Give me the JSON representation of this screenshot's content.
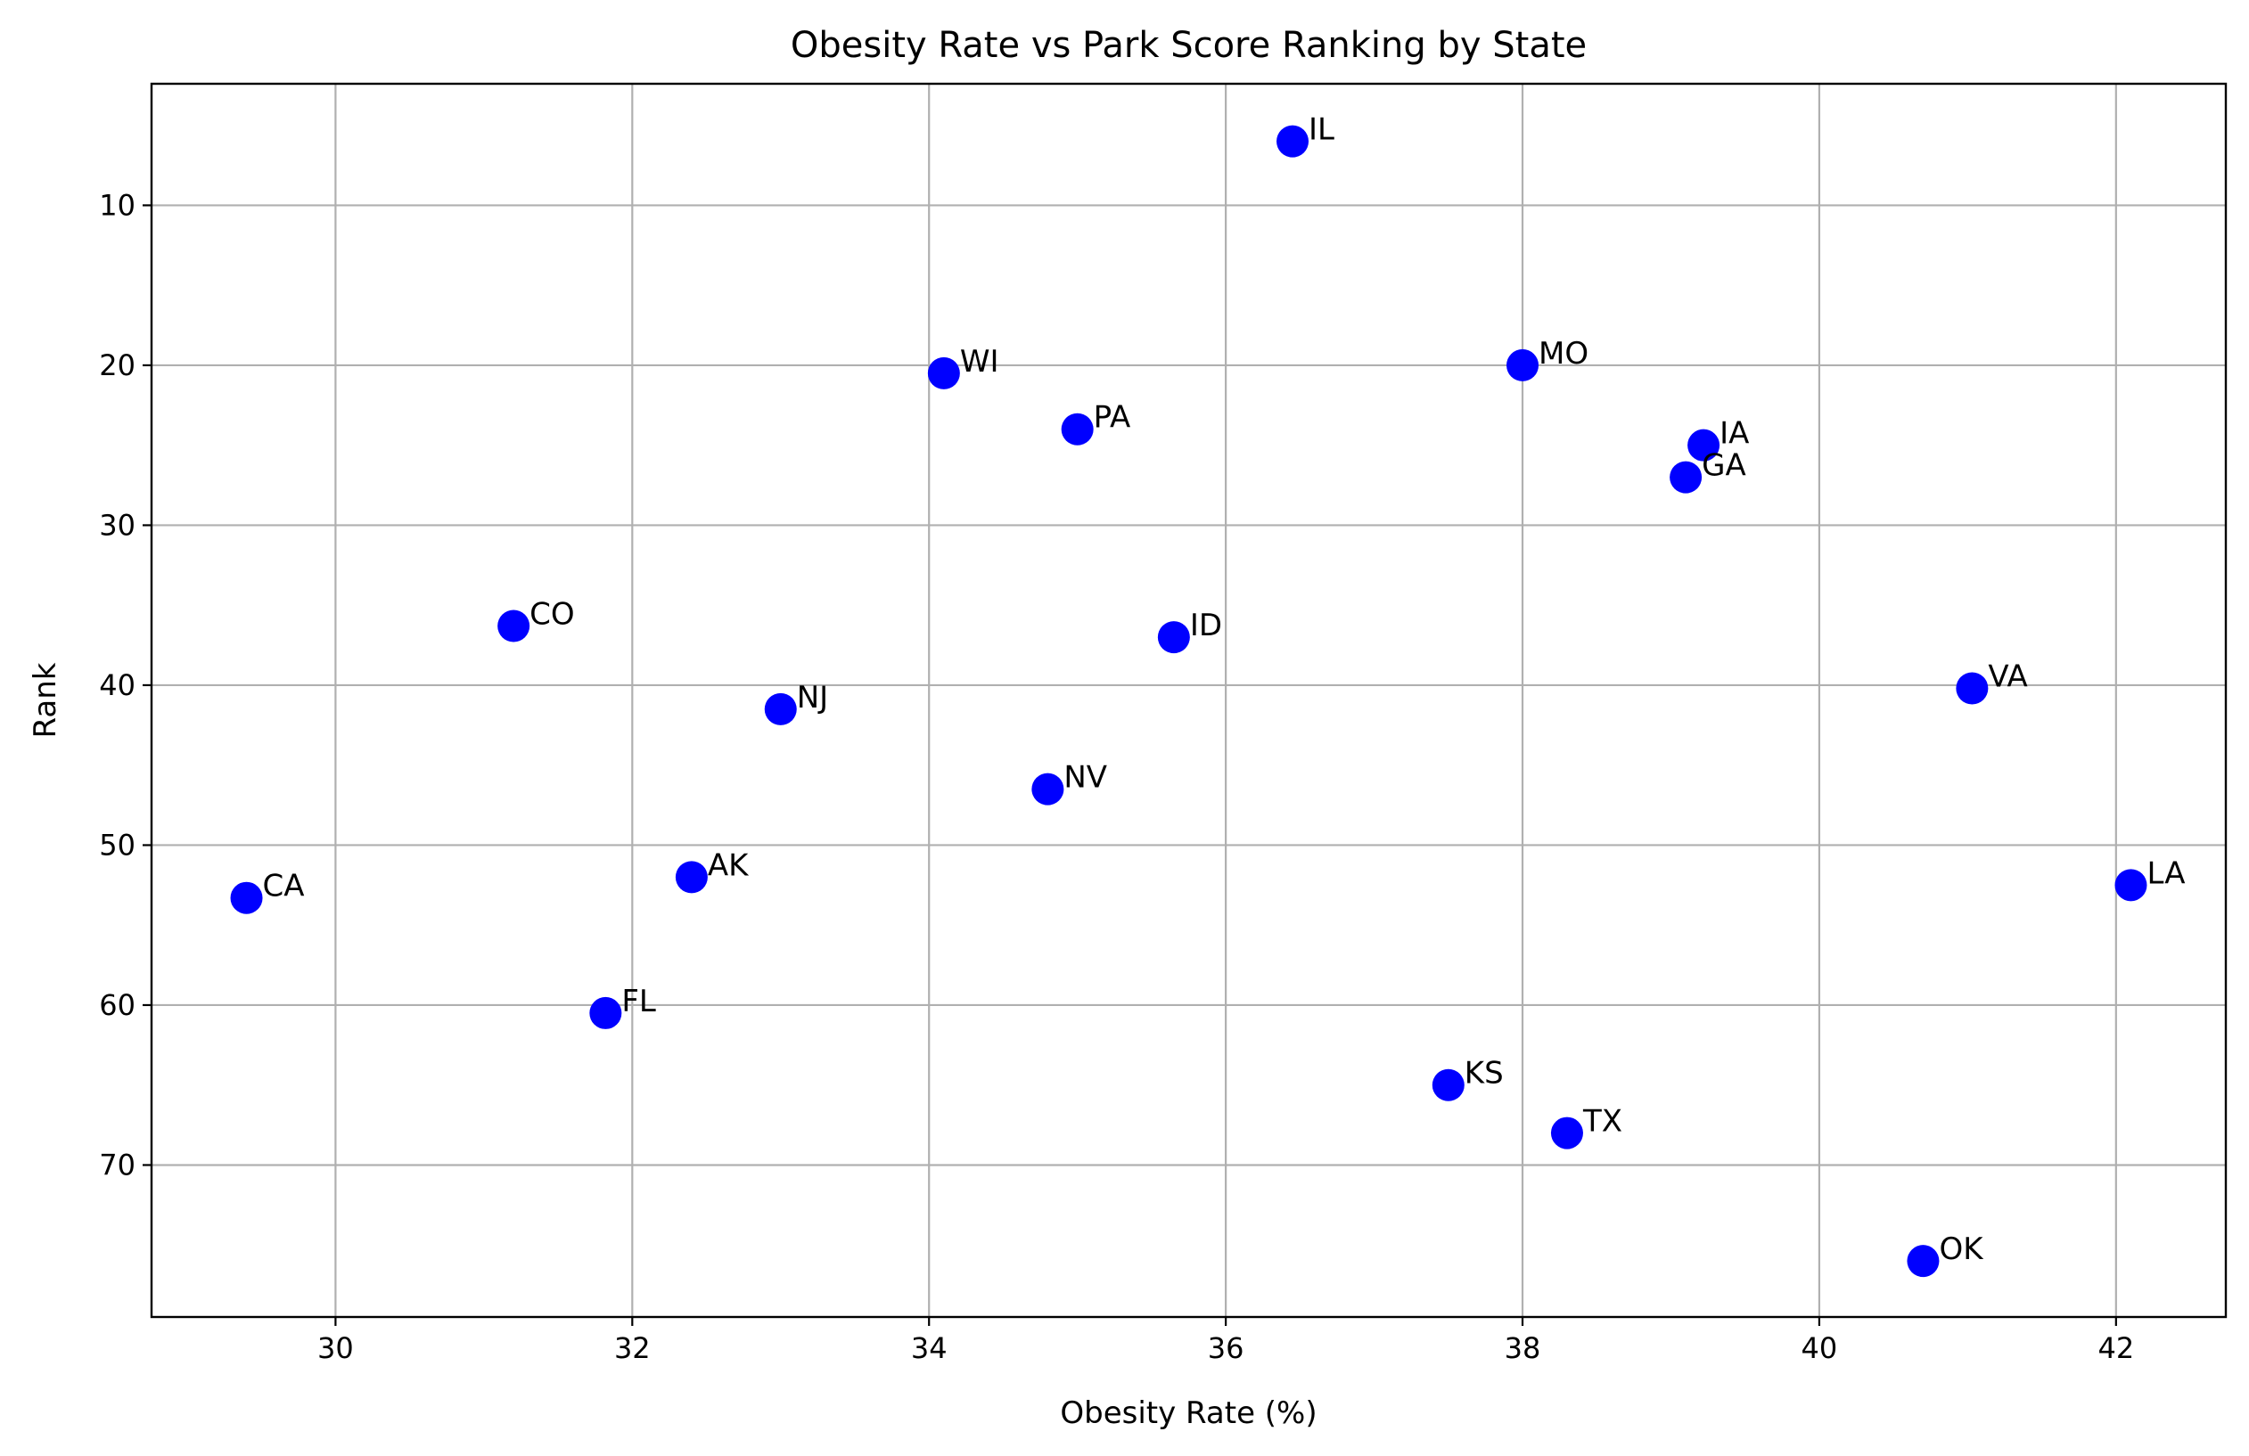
{
  "chart_data": {
    "type": "scatter",
    "title": "Obesity Rate vs Park Score Ranking by State",
    "xlabel": "Obesity Rate (%)",
    "ylabel": "Rank",
    "xlim": [
      28.76,
      42.74
    ],
    "ylim": [
      79.5,
      2.4
    ],
    "y_inverted": true,
    "grid": true,
    "x_ticks": [
      30,
      32,
      34,
      36,
      38,
      40,
      42
    ],
    "y_ticks": [
      10,
      20,
      30,
      40,
      50,
      60,
      70
    ],
    "marker_color": "#0000ff",
    "points": [
      {
        "label": "IL",
        "x": 36.45,
        "y": 6
      },
      {
        "label": "MO",
        "x": 38.0,
        "y": 20
      },
      {
        "label": "WI",
        "x": 34.1,
        "y": 20.5
      },
      {
        "label": "PA",
        "x": 35.0,
        "y": 24
      },
      {
        "label": "IA",
        "x": 39.22,
        "y": 25
      },
      {
        "label": "GA",
        "x": 39.1,
        "y": 27
      },
      {
        "label": "CO",
        "x": 31.2,
        "y": 36.3
      },
      {
        "label": "ID",
        "x": 35.65,
        "y": 37
      },
      {
        "label": "VA",
        "x": 41.03,
        "y": 40.2
      },
      {
        "label": "NJ",
        "x": 33.0,
        "y": 41.5
      },
      {
        "label": "NV",
        "x": 34.8,
        "y": 46.5
      },
      {
        "label": "AK",
        "x": 32.4,
        "y": 52
      },
      {
        "label": "LA",
        "x": 42.1,
        "y": 52.5
      },
      {
        "label": "CA",
        "x": 29.4,
        "y": 53.3
      },
      {
        "label": "FL",
        "x": 31.82,
        "y": 60.5
      },
      {
        "label": "KS",
        "x": 37.5,
        "y": 65
      },
      {
        "label": "TX",
        "x": 38.3,
        "y": 68
      },
      {
        "label": "OK",
        "x": 40.7,
        "y": 76
      }
    ]
  }
}
